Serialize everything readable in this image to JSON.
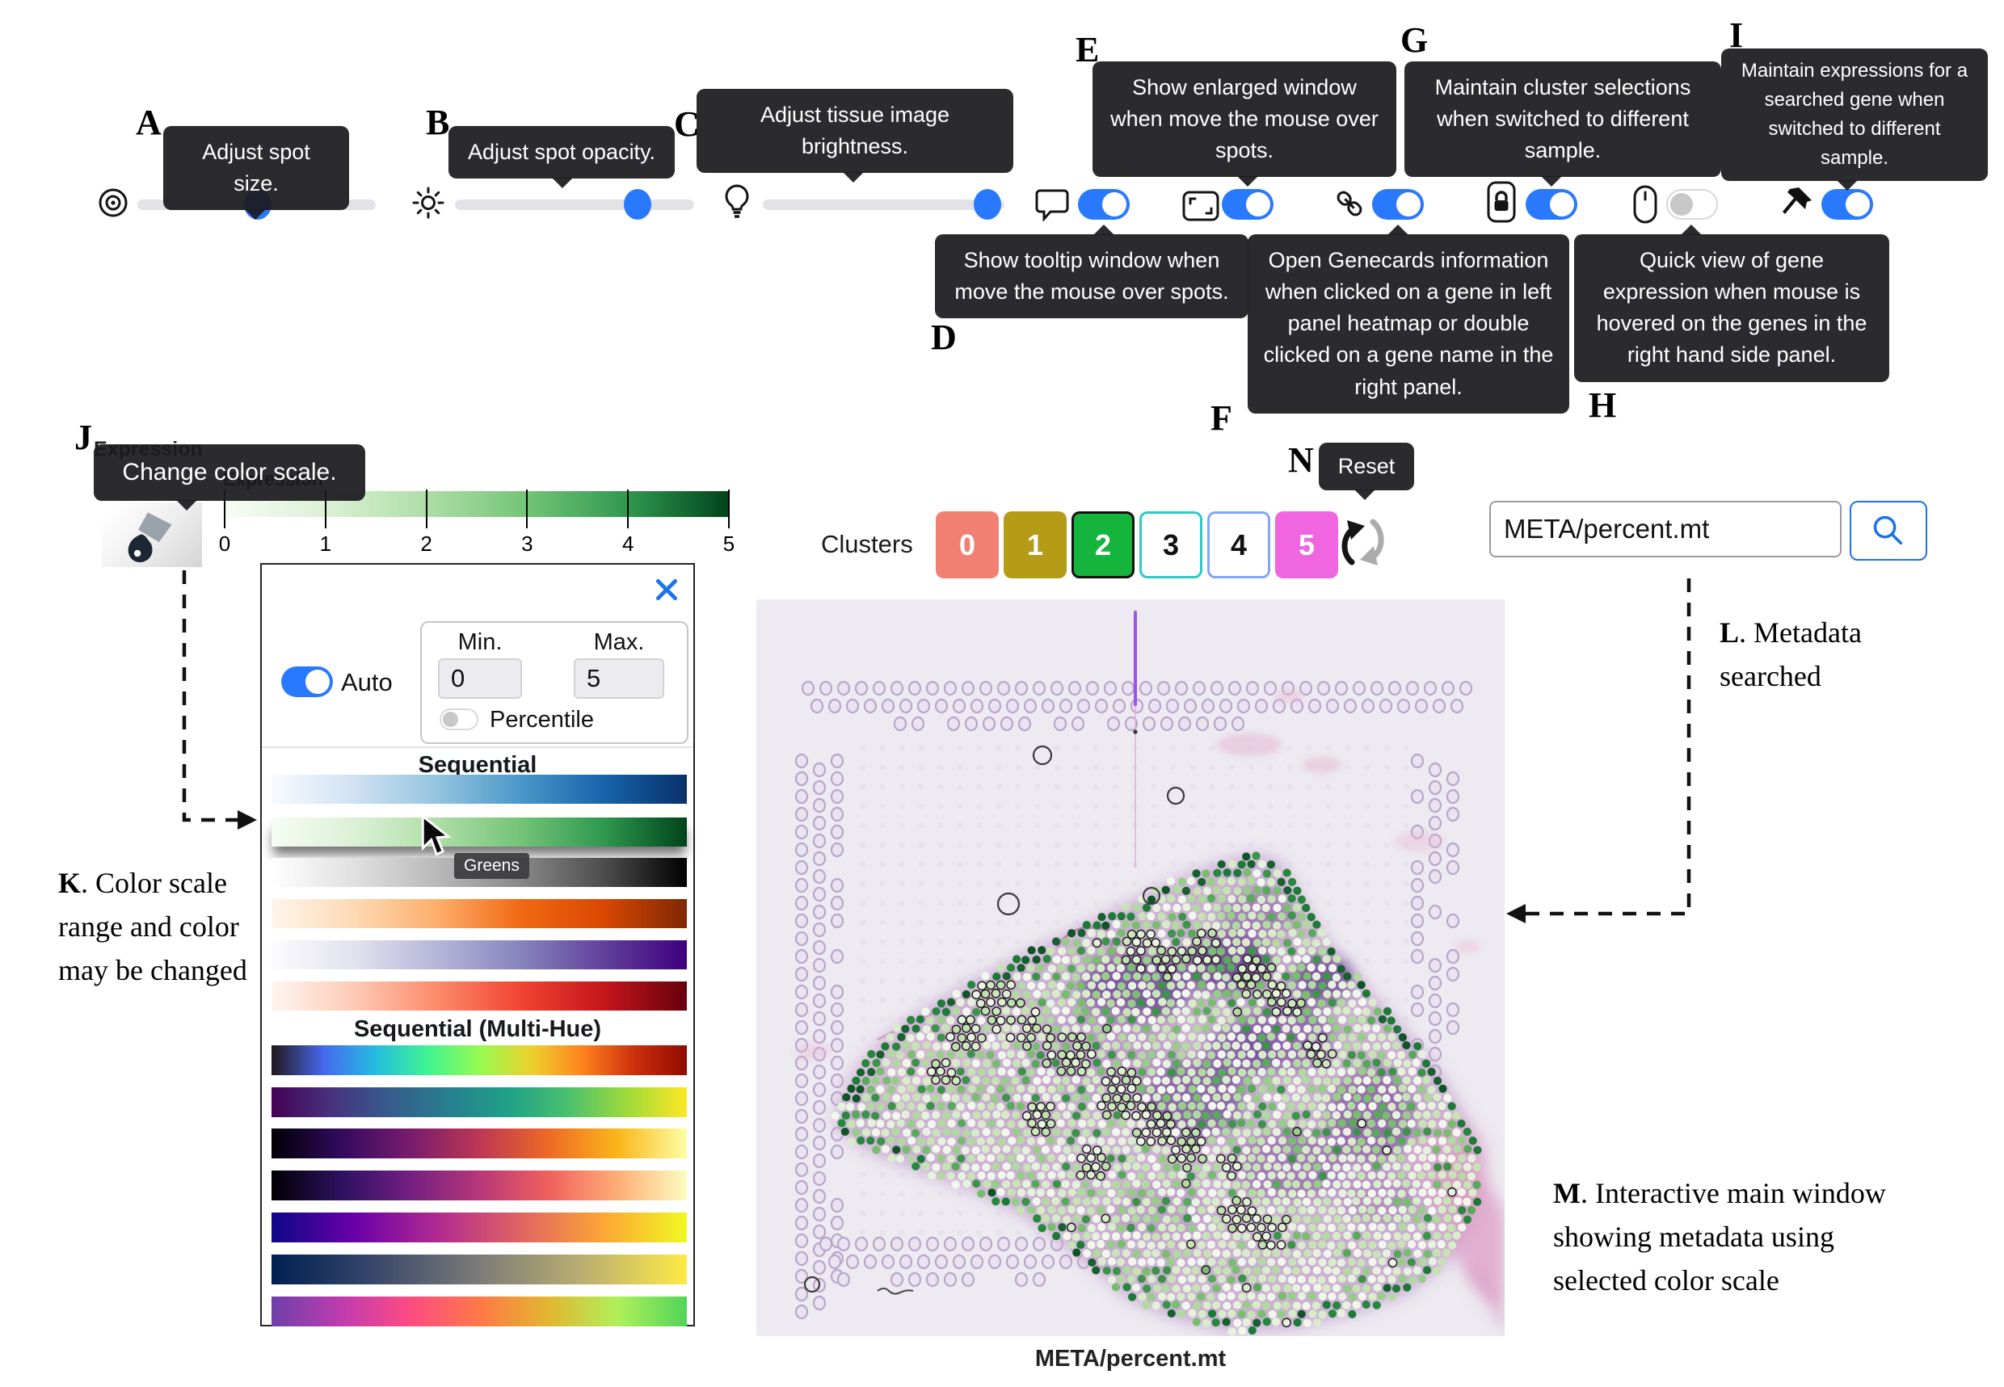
{
  "annotations": {
    "markers": {
      "A": "A",
      "B": "B",
      "C": "C",
      "D": "D",
      "E": "E",
      "F": "F",
      "G": "G",
      "H": "H",
      "I": "I",
      "J": "J",
      "N": "N"
    },
    "K": {
      "marker": "K",
      "text": ". Color scale range and color may be changed"
    },
    "L": {
      "marker": "L",
      "text": ". Metadata searched"
    },
    "M": {
      "marker": "M",
      "text": ". Interactive main window showing metadata using selected color scale"
    }
  },
  "tooltips": {
    "spot_size": "Adjust spot size.",
    "spot_opacity": "Adjust spot opacity.",
    "brightness": "Adjust tissue image brightness.",
    "show_tooltip": "Show tooltip window when move the mouse over spots.",
    "enlarged_window": "Show enlarged window when move the mouse over spots.",
    "genecards": "Open Genecards information when clicked on a gene in left panel heatmap or double clicked on a gene name in the right panel.",
    "maintain_clusters": "Maintain cluster selections when switched to different sample.",
    "quick_view": "Quick view of gene expression when mouse is hovered on the genes in the right hand side panel.",
    "maintain_expressions": "Maintain expressions for a searched gene when switched to different sample.",
    "change_color_scale": "Change color scale.",
    "reset": "Reset",
    "hovered_scale": "Greens"
  },
  "controls": {
    "spot_size_percent": 50,
    "spot_opacity_percent": 76,
    "brightness_percent": 100,
    "toggles": {
      "show_tooltip": true,
      "enlarged_window": true,
      "genecards": true,
      "maintain_clusters": true,
      "quick_view": false,
      "maintain_expressions": true
    }
  },
  "legend": {
    "title": "Expression",
    "hidden_title": "Expression",
    "ticks": [
      "0",
      "1",
      "2",
      "3",
      "4",
      "5"
    ]
  },
  "dialog": {
    "auto_label": "Auto",
    "min_label": "Min.",
    "max_label": "Max.",
    "min_value": "0",
    "max_value": "5",
    "percentile_label": "Percentile",
    "auto_on": true,
    "percentile_on": false,
    "sequential_header": "Sequential",
    "multi_hue_header": "Sequential (Multi-Hue)",
    "sequential_scales": [
      "Blues",
      "Greens",
      "Greys",
      "Oranges",
      "Purples",
      "Reds"
    ],
    "multi_hue_scales": [
      "Turbo",
      "Viridis",
      "Inferno",
      "Magma",
      "Plasma",
      "Cividis",
      "Rainbow"
    ],
    "hovered_scale": "Greens"
  },
  "clusters": {
    "label": "Clusters",
    "buttons": [
      {
        "label": "0",
        "bg": "#f28072",
        "text": "#ffffff",
        "border": "none"
      },
      {
        "label": "1",
        "bg": "#b59b16",
        "text": "#ffffff",
        "border": "none"
      },
      {
        "label": "2",
        "bg": "#15b43c",
        "text": "#ffffff",
        "border": "#111111"
      },
      {
        "label": "3",
        "bg": "#ffffff",
        "text": "#111111",
        "border": "#2ec9c9"
      },
      {
        "label": "4",
        "bg": "#ffffff",
        "text": "#111111",
        "border": "#80a6f7"
      },
      {
        "label": "5",
        "bg": "#ef66e0",
        "text": "#ffffff",
        "border": "none"
      }
    ]
  },
  "search": {
    "value": "META/percent.mt"
  },
  "main_view": {
    "caption": "META/percent.mt"
  },
  "colors": {
    "accent": "#2979ff",
    "search_blue": "#1a73e8",
    "tooltip_bg": "#1b1b1d",
    "slide_bg": "#edeaf1"
  }
}
